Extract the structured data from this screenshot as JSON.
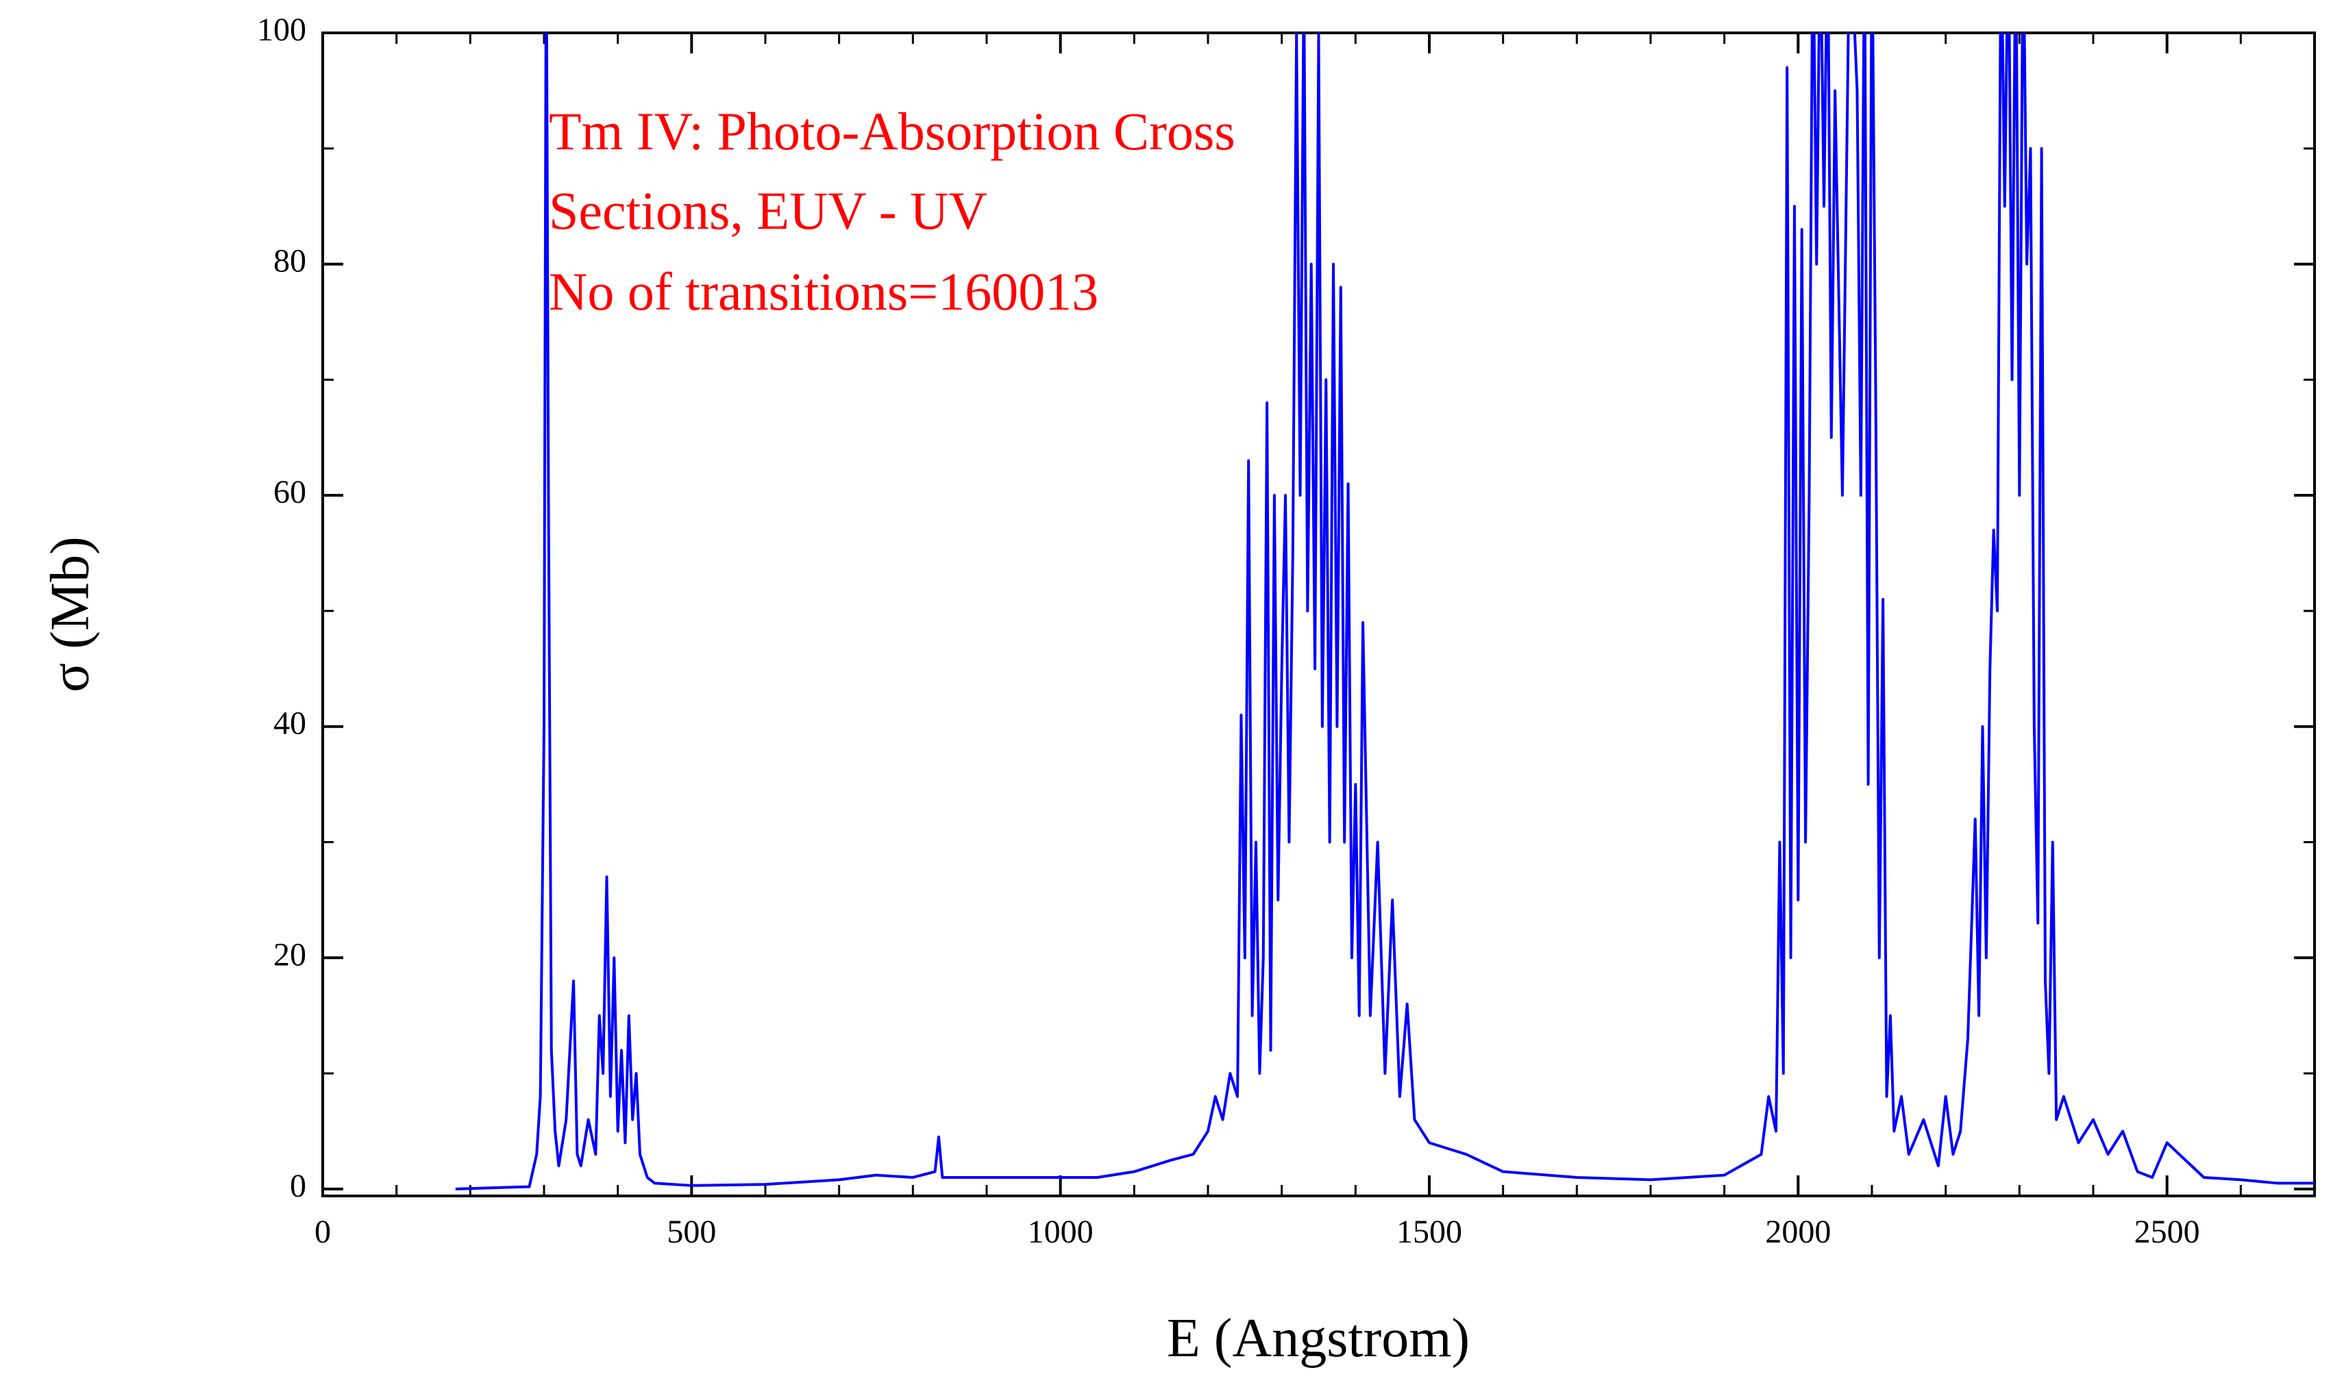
{
  "chart_data": {
    "type": "line",
    "xlabel": "E (Angstrom)",
    "ylabel": "σ (Mb)",
    "annotations": [
      "Tm IV: Photo-Absorption Cross",
      "Sections, EUV - UV",
      "No of transitions=160013"
    ],
    "xlim": [
      0,
      2700
    ],
    "ylim": [
      -0.6,
      100
    ],
    "xticks": [
      0,
      500,
      1000,
      1500,
      2000,
      2500
    ],
    "yticks": [
      0,
      20,
      40,
      60,
      80,
      100
    ],
    "x": [
      180,
      280,
      290,
      295,
      300,
      303,
      306,
      310,
      315,
      320,
      330,
      340,
      345,
      350,
      360,
      370,
      375,
      380,
      385,
      390,
      395,
      400,
      405,
      410,
      415,
      420,
      425,
      430,
      440,
      450,
      500,
      600,
      700,
      750,
      800,
      830,
      835,
      840,
      900,
      1000,
      1050,
      1100,
      1150,
      1180,
      1200,
      1210,
      1220,
      1230,
      1240,
      1245,
      1250,
      1255,
      1260,
      1265,
      1270,
      1275,
      1280,
      1285,
      1290,
      1295,
      1300,
      1305,
      1310,
      1315,
      1320,
      1325,
      1330,
      1335,
      1340,
      1345,
      1350,
      1355,
      1360,
      1365,
      1370,
      1375,
      1380,
      1385,
      1390,
      1395,
      1400,
      1405,
      1410,
      1420,
      1430,
      1440,
      1450,
      1460,
      1470,
      1480,
      1500,
      1550,
      1600,
      1700,
      1800,
      1900,
      1950,
      1960,
      1970,
      1975,
      1980,
      1985,
      1990,
      1995,
      2000,
      2005,
      2010,
      2015,
      2020,
      2025,
      2030,
      2035,
      2040,
      2045,
      2050,
      2060,
      2070,
      2080,
      2085,
      2090,
      2095,
      2100,
      2105,
      2110,
      2115,
      2120,
      2125,
      2130,
      2140,
      2150,
      2170,
      2190,
      2200,
      2210,
      2220,
      2230,
      2240,
      2245,
      2250,
      2255,
      2260,
      2265,
      2270,
      2275,
      2280,
      2285,
      2290,
      2295,
      2300,
      2305,
      2310,
      2315,
      2320,
      2325,
      2330,
      2335,
      2340,
      2345,
      2350,
      2360,
      2380,
      2400,
      2420,
      2440,
      2460,
      2480,
      2500,
      2550,
      2600,
      2650,
      2700
    ],
    "series": [
      {
        "color": "#0000ff",
        "values": [
          0,
          0.2,
          3,
          8,
          40,
          110,
          60,
          12,
          5,
          2,
          6,
          18,
          3,
          2,
          6,
          3,
          15,
          10,
          27,
          8,
          20,
          5,
          12,
          4,
          15,
          6,
          10,
          3,
          1,
          0.5,
          0.3,
          0.4,
          0.8,
          1.2,
          1,
          1.5,
          4.5,
          1,
          1,
          1,
          1,
          1.5,
          2.5,
          3,
          5,
          8,
          6,
          10,
          8,
          41,
          20,
          63,
          15,
          30,
          10,
          20,
          68,
          12,
          60,
          25,
          45,
          60,
          30,
          55,
          100,
          60,
          105,
          50,
          80,
          45,
          100,
          40,
          70,
          30,
          80,
          40,
          78,
          30,
          61,
          20,
          35,
          15,
          49,
          15,
          30,
          10,
          25,
          8,
          16,
          6,
          4,
          3,
          1.5,
          1,
          0.8,
          1.2,
          3,
          8,
          5,
          30,
          10,
          97,
          20,
          85,
          25,
          83,
          30,
          60,
          110,
          80,
          110,
          85,
          110,
          65,
          95,
          60,
          110,
          95,
          60,
          110,
          35,
          110,
          70,
          20,
          51,
          8,
          15,
          5,
          8,
          3,
          6,
          2,
          8,
          3,
          5,
          13,
          32,
          15,
          40,
          20,
          45,
          57,
          50,
          110,
          85,
          110,
          70,
          110,
          60,
          110,
          80,
          90,
          40,
          23,
          90,
          18,
          10,
          30,
          6,
          8,
          4,
          6,
          3,
          5,
          1.5,
          1,
          4,
          1,
          0.8,
          0.5,
          0.5
        ]
      }
    ]
  }
}
